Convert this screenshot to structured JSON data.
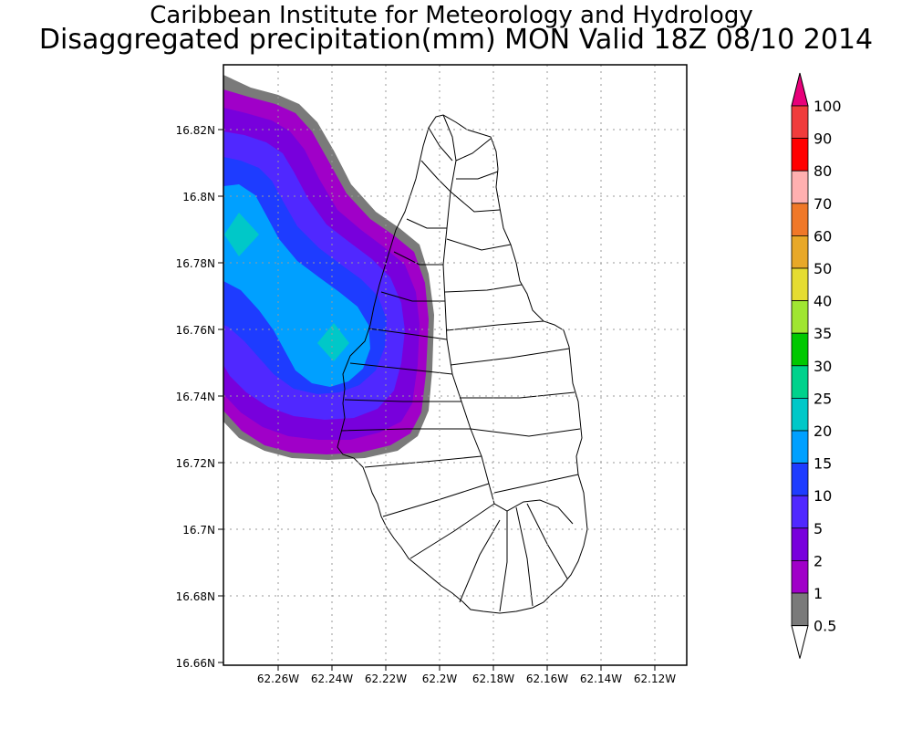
{
  "header": {
    "institute": "Caribbean Institute for Meteorology and Hydrology",
    "product": "Disaggregated precipitation(mm) MON Valid 18Z 08/10 2014"
  },
  "map": {
    "lat_labels": [
      "16.82N",
      "16.8N",
      "16.78N",
      "16.76N",
      "16.74N",
      "16.72N",
      "16.7N",
      "16.68N",
      "16.66N"
    ],
    "lon_labels": [
      "62.26W",
      "62.24W",
      "62.22W",
      "62.2W",
      "62.18W",
      "62.16W",
      "62.14W",
      "62.12W"
    ],
    "grid": true
  },
  "legend": {
    "levels": [
      "100",
      "90",
      "80",
      "70",
      "60",
      "50",
      "40",
      "35",
      "30",
      "25",
      "20",
      "15",
      "10",
      "5",
      "2",
      "1",
      "0.5"
    ],
    "colors": [
      "#e8007a",
      "#f03c3c",
      "#ff0000",
      "#ffb0b0",
      "#f07828",
      "#e8a828",
      "#e6dc32",
      "#a0e632",
      "#00c800",
      "#00d28c",
      "#00c8c8",
      "#00a0ff",
      "#1e3cff",
      "#5028ff",
      "#7800dc",
      "#a000c8",
      "#7a7a7a",
      "#ffffff"
    ]
  }
}
